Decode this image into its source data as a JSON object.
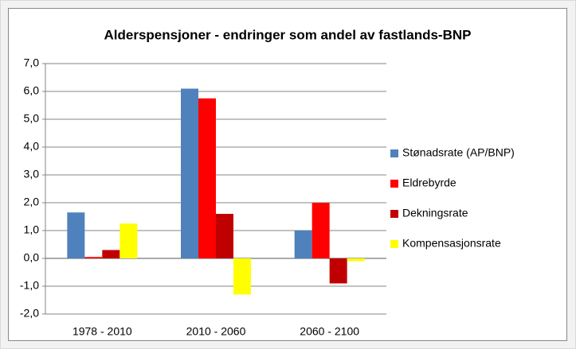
{
  "chart_data": {
    "type": "bar",
    "title": "Alderspensjoner - endringer som andel av fastlands-BNP",
    "categories": [
      "1978 - 2010",
      "2010 - 2060",
      "2060 - 2100"
    ],
    "series": [
      {
        "name": "Stønadsrate (AP/BNP)",
        "color": "#4f81bd",
        "values": [
          1.65,
          6.1,
          1.0
        ]
      },
      {
        "name": "Eldrebyrde",
        "color": "#ff0000",
        "values": [
          0.05,
          5.75,
          2.0
        ]
      },
      {
        "name": "Dekningsrate",
        "color": "#c00000",
        "values": [
          0.3,
          1.6,
          -0.9
        ]
      },
      {
        "name": "Kompensasjonsrate",
        "color": "#ffff00",
        "values": [
          1.25,
          -1.3,
          -0.1
        ]
      }
    ],
    "ylim": [
      -2,
      7
    ],
    "yticks": [
      {
        "value": -2,
        "label": "-2,0"
      },
      {
        "value": -1,
        "label": "-1,0"
      },
      {
        "value": 0,
        "label": "0,0"
      },
      {
        "value": 1,
        "label": "1,0"
      },
      {
        "value": 2,
        "label": "2,0"
      },
      {
        "value": 3,
        "label": "3,0"
      },
      {
        "value": 4,
        "label": "4,0"
      },
      {
        "value": 5,
        "label": "5,0"
      },
      {
        "value": 6,
        "label": "6,0"
      },
      {
        "value": 7,
        "label": "7,0"
      }
    ],
    "grid": true
  }
}
